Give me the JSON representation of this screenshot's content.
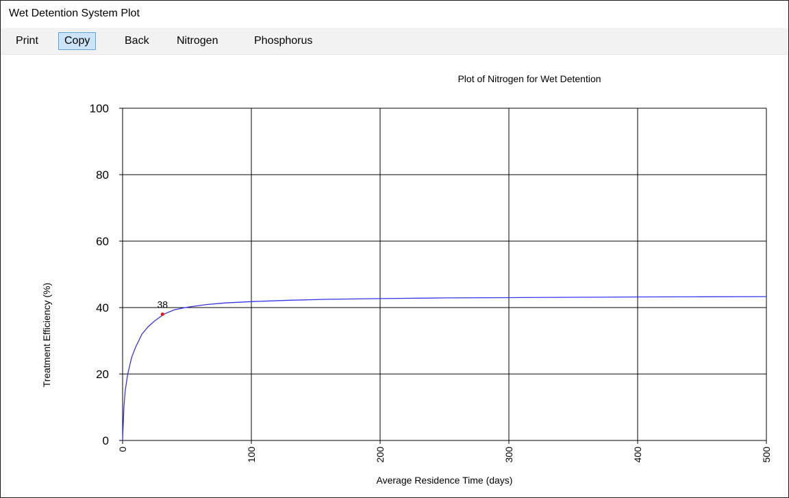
{
  "window": {
    "title": "Wet Detention System Plot"
  },
  "menu": {
    "items": [
      {
        "label": "Print",
        "selected": false
      },
      {
        "label": "Copy",
        "selected": true
      },
      {
        "label": "Back",
        "selected": false
      },
      {
        "label": "Nitrogen",
        "selected": false
      },
      {
        "label": "Phosphorus",
        "selected": false
      }
    ]
  },
  "colors": {
    "series": "#3333ee",
    "marker": "#ee1111",
    "grid": "#000000",
    "menu_selected_bg": "#cce4f7",
    "menu_selected_border": "#5ea3d8"
  },
  "chart_data": {
    "type": "line",
    "title": "Plot of Nitrogen for Wet Detention",
    "xlabel": "Average Residence Time (days)",
    "ylabel": "Treatment Efficiency (%)",
    "xlim": [
      0,
      500
    ],
    "ylim": [
      0,
      100
    ],
    "xticks": [
      0,
      100,
      200,
      300,
      400,
      500
    ],
    "yticks": [
      0,
      20,
      40,
      60,
      80,
      100
    ],
    "grid": true,
    "series": [
      {
        "x": [
          0,
          1,
          2,
          4,
          7,
          10,
          15,
          20,
          25,
          32,
          40,
          50,
          65,
          80,
          100,
          130,
          160,
          200,
          250,
          300,
          350,
          400,
          450,
          500
        ],
        "y": [
          0,
          10,
          15,
          20,
          25,
          28,
          32,
          34.3,
          36,
          38,
          39.3,
          40.1,
          40.9,
          41.4,
          41.8,
          42.2,
          42.5,
          42.7,
          42.9,
          43.0,
          43.1,
          43.2,
          43.25,
          43.3
        ]
      }
    ],
    "highlight": {
      "x": 31,
      "y": 38,
      "label": "38"
    }
  }
}
